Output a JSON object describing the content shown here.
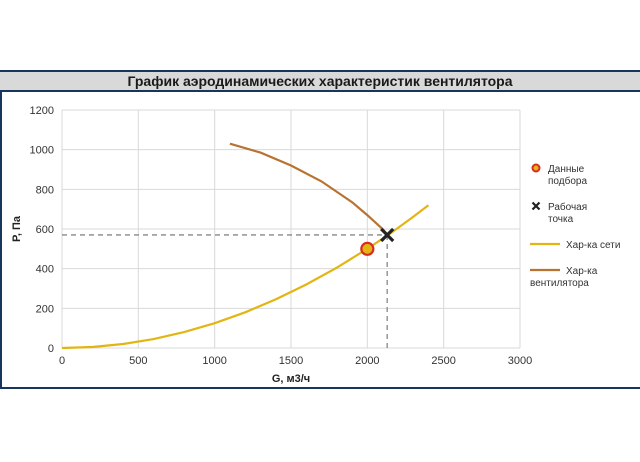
{
  "chart_data": {
    "type": "line",
    "title": "График аэродинамических характеристик вентилятора",
    "xlabel": "G, м3/ч",
    "ylabel": "P, Па",
    "xlim": [
      0,
      3000
    ],
    "ylim": [
      0,
      1200
    ],
    "xticks": [
      0,
      500,
      1000,
      1500,
      2000,
      2500,
      3000
    ],
    "yticks": [
      0,
      200,
      400,
      600,
      800,
      1000,
      1200
    ],
    "grid": true,
    "legend_position": "right",
    "series": [
      {
        "name": "Хар-ка сети",
        "kind": "line",
        "color": "#e3b513",
        "points": [
          [
            0,
            0
          ],
          [
            200,
            5
          ],
          [
            400,
            20
          ],
          [
            600,
            45
          ],
          [
            800,
            80
          ],
          [
            1000,
            125
          ],
          [
            1200,
            180
          ],
          [
            1400,
            245
          ],
          [
            1600,
            320
          ],
          [
            1800,
            405
          ],
          [
            2000,
            500
          ],
          [
            2100,
            551
          ],
          [
            2200,
            605
          ],
          [
            2300,
            661
          ],
          [
            2400,
            720
          ]
        ]
      },
      {
        "name": "Хар-ка вентилятора",
        "kind": "line",
        "color": "#b87333",
        "points": [
          [
            1100,
            1030
          ],
          [
            1300,
            985
          ],
          [
            1500,
            920
          ],
          [
            1700,
            840
          ],
          [
            1900,
            735
          ],
          [
            2000,
            670
          ],
          [
            2100,
            600
          ],
          [
            2150,
            555
          ]
        ]
      },
      {
        "name": "Данные подбора",
        "kind": "marker-circle",
        "color": "#e3b513",
        "edge_color": "#d62d20",
        "points": [
          [
            2000,
            500
          ]
        ]
      },
      {
        "name": "Рабочая точка",
        "kind": "marker-x",
        "color": "#222222",
        "points": [
          [
            2130,
            570
          ]
        ]
      }
    ],
    "legend": [
      {
        "kind": "marker-circle",
        "lines": [
          "Данные",
          "подбора"
        ]
      },
      {
        "kind": "marker-x",
        "lines": [
          "Рабочая",
          "точка"
        ]
      },
      {
        "kind": "line-yellow",
        "lines": [
          "Хар-ка сети"
        ]
      },
      {
        "kind": "line-brown",
        "lines": [
          "Хар-ка",
          "вентилятора"
        ]
      }
    ],
    "guide_lines": {
      "x": 2130,
      "y": 570,
      "color": "#888888"
    }
  }
}
